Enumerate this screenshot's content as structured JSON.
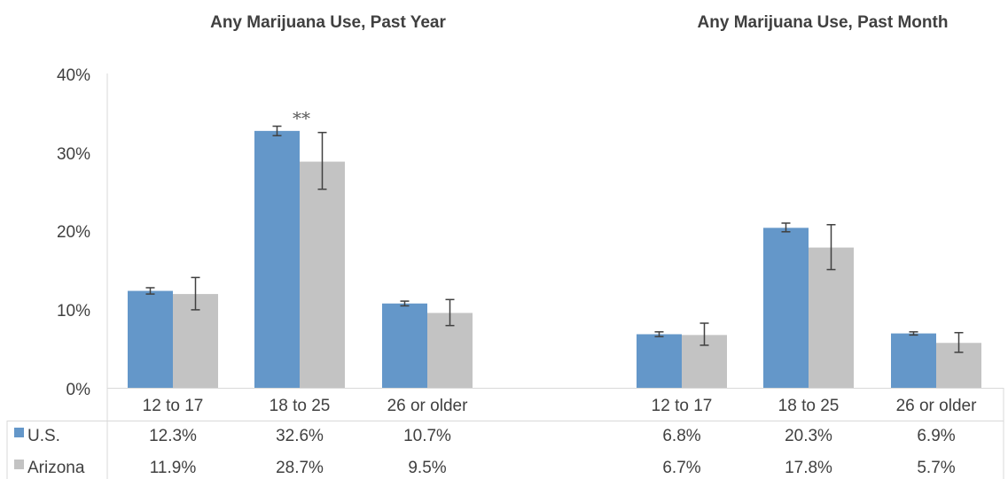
{
  "chart_data": [
    {
      "type": "bar",
      "title": "Any Marijuana Use, Past Year",
      "categories": [
        "12 to 17",
        "18 to 25",
        "26 or older"
      ],
      "series": [
        {
          "name": "U.S.",
          "color": "#6497C9",
          "values": [
            12.3,
            32.6,
            10.7
          ],
          "error_bars": [
            [
              11.9,
              12.7
            ],
            [
              32.0,
              33.2
            ],
            [
              10.4,
              11.0
            ]
          ]
        },
        {
          "name": "Arizona",
          "color": "#C3C3C3",
          "values": [
            11.9,
            28.7,
            9.5
          ],
          "error_bars": [
            [
              9.9,
              14.0
            ],
            [
              25.2,
              32.4
            ],
            [
              7.9,
              11.2
            ]
          ]
        }
      ],
      "annotations": [
        {
          "category": "18 to 25",
          "text": "**"
        }
      ],
      "ylim": [
        0,
        40
      ],
      "yticks": [
        "0%",
        "10%",
        "20%",
        "30%",
        "40%"
      ],
      "table_values": {
        "U.S.": [
          "12.3%",
          "32.6%",
          "10.7%"
        ],
        "Arizona": [
          "11.9%",
          "28.7%",
          "9.5%"
        ]
      }
    },
    {
      "type": "bar",
      "title": "Any Marijuana Use, Past Month",
      "categories": [
        "12 to 17",
        "18 to 25",
        "26 or older"
      ],
      "series": [
        {
          "name": "U.S.",
          "color": "#6497C9",
          "values": [
            6.8,
            20.3,
            6.9
          ],
          "error_bars": [
            [
              6.5,
              7.1
            ],
            [
              19.8,
              20.9
            ],
            [
              6.7,
              7.1
            ]
          ]
        },
        {
          "name": "Arizona",
          "color": "#C3C3C3",
          "values": [
            6.7,
            17.8,
            5.7
          ],
          "error_bars": [
            [
              5.4,
              8.2
            ],
            [
              15.0,
              20.7
            ],
            [
              4.5,
              7.0
            ]
          ]
        }
      ],
      "annotations": [],
      "ylim": [
        0,
        40
      ],
      "table_values": {
        "U.S.": [
          "6.8%",
          "20.3%",
          "6.9%"
        ],
        "Arizona": [
          "6.7%",
          "17.8%",
          "5.7%"
        ]
      }
    }
  ]
}
